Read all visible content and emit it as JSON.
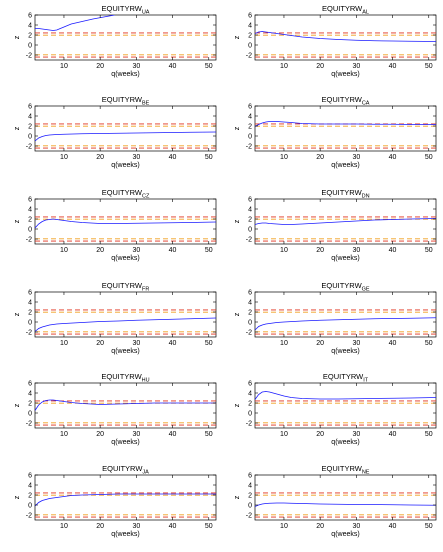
{
  "chart_data": [
    {
      "type": "line",
      "title": "EQUITYRW",
      "title_sub": "UA",
      "xlabel": "q(weeks)",
      "ylabel": "z",
      "xlim": [
        2,
        52
      ],
      "ylim": [
        -3,
        6
      ],
      "xticks": [
        10,
        20,
        30,
        40,
        50
      ],
      "yticks": [
        -2,
        0,
        2,
        4,
        6
      ],
      "critical_values": [
        {
          "value": 1.96,
          "color": "#f0a020"
        },
        {
          "value": 2.41,
          "color": "#e0301e"
        },
        {
          "value": -1.96,
          "color": "#f0a020"
        },
        {
          "value": -2.41,
          "color": "#e0301e"
        }
      ],
      "series": [
        {
          "color": "#1a1aff",
          "x": [
            2,
            3,
            4,
            5,
            6,
            7,
            8,
            10,
            12,
            15,
            18,
            21,
            24
          ],
          "y": [
            3.3,
            3.3,
            3.2,
            3.1,
            3.0,
            2.9,
            3.0,
            3.6,
            4.2,
            4.7,
            5.2,
            5.6,
            6.0
          ]
        }
      ]
    },
    {
      "type": "line",
      "title": "EQUITYRW",
      "title_sub": "AL",
      "xlabel": "q(weeks)",
      "ylabel": "z",
      "xlim": [
        2,
        52
      ],
      "ylim": [
        -3,
        6
      ],
      "xticks": [
        10,
        20,
        30,
        40,
        50
      ],
      "yticks": [
        -2,
        0,
        2,
        4,
        6
      ],
      "critical_values": [
        {
          "value": 1.96,
          "color": "#f0a020"
        },
        {
          "value": 2.41,
          "color": "#e0301e"
        },
        {
          "value": -1.96,
          "color": "#f0a020"
        },
        {
          "value": -2.41,
          "color": "#e0301e"
        }
      ],
      "series": [
        {
          "color": "#1a1aff",
          "x": [
            2,
            3,
            4,
            5,
            6,
            8,
            10,
            12,
            15,
            20,
            25,
            30,
            35,
            40,
            45,
            52
          ],
          "y": [
            2.3,
            2.6,
            2.7,
            2.6,
            2.5,
            2.3,
            2.1,
            1.9,
            1.6,
            1.3,
            1.1,
            0.95,
            0.85,
            0.8,
            0.75,
            0.7
          ]
        }
      ]
    },
    {
      "type": "line",
      "title": "EQUITYRW",
      "title_sub": "BE",
      "xlabel": "q(weeks)",
      "ylabel": "z",
      "xlim": [
        2,
        52
      ],
      "ylim": [
        -3,
        6
      ],
      "xticks": [
        10,
        20,
        30,
        40,
        50
      ],
      "yticks": [
        -2,
        0,
        2,
        4,
        6
      ],
      "critical_values": [
        {
          "value": 1.96,
          "color": "#f0a020"
        },
        {
          "value": 2.41,
          "color": "#e0301e"
        },
        {
          "value": -1.96,
          "color": "#f0a020"
        },
        {
          "value": -2.41,
          "color": "#e0301e"
        }
      ],
      "series": [
        {
          "color": "#1a1aff",
          "x": [
            2,
            3,
            4,
            5,
            6,
            8,
            10,
            15,
            20,
            25,
            30,
            35,
            40,
            45,
            52
          ],
          "y": [
            -1.0,
            -0.4,
            -0.1,
            0.1,
            0.2,
            0.3,
            0.35,
            0.45,
            0.5,
            0.55,
            0.6,
            0.65,
            0.7,
            0.75,
            0.8
          ]
        }
      ]
    },
    {
      "type": "line",
      "title": "EQUITYRW",
      "title_sub": "CA",
      "xlabel": "q(weeks)",
      "ylabel": "z",
      "xlim": [
        2,
        52
      ],
      "ylim": [
        -3,
        6
      ],
      "xticks": [
        10,
        20,
        30,
        40,
        50
      ],
      "yticks": [
        -2,
        0,
        2,
        4,
        6
      ],
      "critical_values": [
        {
          "value": 1.96,
          "color": "#f0a020"
        },
        {
          "value": 2.41,
          "color": "#e0301e"
        },
        {
          "value": -1.96,
          "color": "#f0a020"
        },
        {
          "value": -2.41,
          "color": "#e0301e"
        }
      ],
      "series": [
        {
          "color": "#1a1aff",
          "x": [
            2,
            3,
            4,
            5,
            6,
            8,
            10,
            12,
            15,
            20,
            25,
            30,
            35,
            40,
            45,
            52
          ],
          "y": [
            1.9,
            2.3,
            2.6,
            2.8,
            2.9,
            2.9,
            2.8,
            2.7,
            2.5,
            2.4,
            2.4,
            2.4,
            2.35,
            2.35,
            2.3,
            2.3
          ]
        }
      ]
    },
    {
      "type": "line",
      "title": "EQUITYRW",
      "title_sub": "CZ",
      "xlabel": "q(weeks)",
      "ylabel": "z",
      "xlim": [
        2,
        52
      ],
      "ylim": [
        -3,
        6
      ],
      "xticks": [
        10,
        20,
        30,
        40,
        50
      ],
      "yticks": [
        -2,
        0,
        2,
        4,
        6
      ],
      "critical_values": [
        {
          "value": 1.96,
          "color": "#f0a020"
        },
        {
          "value": 2.41,
          "color": "#e0301e"
        },
        {
          "value": -1.96,
          "color": "#f0a020"
        },
        {
          "value": -2.41,
          "color": "#e0301e"
        }
      ],
      "series": [
        {
          "color": "#1a1aff",
          "x": [
            2,
            3,
            4,
            5,
            6,
            7,
            8,
            10,
            12,
            15,
            20,
            25,
            30,
            35,
            40,
            45,
            52
          ],
          "y": [
            0.2,
            1.0,
            1.5,
            1.8,
            1.9,
            2.0,
            1.9,
            1.7,
            1.5,
            1.3,
            1.1,
            1.1,
            1.15,
            1.2,
            1.25,
            1.3,
            1.4
          ]
        }
      ]
    },
    {
      "type": "line",
      "title": "EQUITYRW",
      "title_sub": "DN",
      "xlabel": "q(weeks)",
      "ylabel": "z",
      "xlim": [
        2,
        52
      ],
      "ylim": [
        -3,
        6
      ],
      "xticks": [
        10,
        20,
        30,
        40,
        50
      ],
      "yticks": [
        -2,
        0,
        2,
        4,
        6
      ],
      "critical_values": [
        {
          "value": 1.96,
          "color": "#f0a020"
        },
        {
          "value": 2.41,
          "color": "#e0301e"
        },
        {
          "value": -1.96,
          "color": "#f0a020"
        },
        {
          "value": -2.41,
          "color": "#e0301e"
        }
      ],
      "series": [
        {
          "color": "#1a1aff",
          "x": [
            2,
            3,
            4,
            5,
            6,
            8,
            10,
            12,
            15,
            20,
            25,
            30,
            35,
            40,
            45,
            52
          ],
          "y": [
            0.9,
            1.1,
            1.2,
            1.2,
            1.1,
            1.0,
            0.9,
            0.9,
            1.0,
            1.2,
            1.4,
            1.6,
            1.8,
            1.9,
            2.0,
            2.1
          ]
        }
      ]
    },
    {
      "type": "line",
      "title": "EQUITYRW",
      "title_sub": "FR",
      "xlabel": "q(weeks)",
      "ylabel": "z",
      "xlim": [
        2,
        52
      ],
      "ylim": [
        -3,
        6
      ],
      "xticks": [
        10,
        20,
        30,
        40,
        50
      ],
      "yticks": [
        -2,
        0,
        2,
        4,
        6
      ],
      "critical_values": [
        {
          "value": 1.96,
          "color": "#f0a020"
        },
        {
          "value": 2.41,
          "color": "#e0301e"
        },
        {
          "value": -1.96,
          "color": "#f0a020"
        },
        {
          "value": -2.41,
          "color": "#e0301e"
        }
      ],
      "series": [
        {
          "color": "#1a1aff",
          "x": [
            2,
            3,
            4,
            5,
            6,
            8,
            10,
            15,
            20,
            25,
            30,
            35,
            40,
            45,
            52
          ],
          "y": [
            -1.9,
            -1.3,
            -1.0,
            -0.8,
            -0.6,
            -0.4,
            -0.3,
            -0.1,
            0.1,
            0.2,
            0.35,
            0.45,
            0.55,
            0.65,
            0.8
          ]
        }
      ]
    },
    {
      "type": "line",
      "title": "EQUITYRW",
      "title_sub": "GE",
      "xlabel": "q(weeks)",
      "ylabel": "z",
      "xlim": [
        2,
        52
      ],
      "ylim": [
        -3,
        6
      ],
      "xticks": [
        10,
        20,
        30,
        40,
        50
      ],
      "yticks": [
        -2,
        0,
        2,
        4,
        6
      ],
      "critical_values": [
        {
          "value": 1.96,
          "color": "#f0a020"
        },
        {
          "value": 2.41,
          "color": "#e0301e"
        },
        {
          "value": -1.96,
          "color": "#f0a020"
        },
        {
          "value": -2.41,
          "color": "#e0301e"
        }
      ],
      "series": [
        {
          "color": "#1a1aff",
          "x": [
            2,
            3,
            4,
            5,
            6,
            8,
            10,
            15,
            20,
            25,
            30,
            35,
            40,
            45,
            52
          ],
          "y": [
            -1.6,
            -0.9,
            -0.6,
            -0.4,
            -0.3,
            -0.1,
            0.0,
            0.2,
            0.35,
            0.45,
            0.55,
            0.65,
            0.7,
            0.75,
            0.85
          ]
        }
      ]
    },
    {
      "type": "line",
      "title": "EQUITYRW",
      "title_sub": "HU",
      "xlabel": "q(weeks)",
      "ylabel": "z",
      "xlim": [
        2,
        52
      ],
      "ylim": [
        -3,
        6
      ],
      "xticks": [
        10,
        20,
        30,
        40,
        50
      ],
      "yticks": [
        -2,
        0,
        2,
        4,
        6
      ],
      "critical_values": [
        {
          "value": 1.96,
          "color": "#f0a020"
        },
        {
          "value": 2.41,
          "color": "#e0301e"
        },
        {
          "value": -1.96,
          "color": "#f0a020"
        },
        {
          "value": -2.41,
          "color": "#e0301e"
        }
      ],
      "series": [
        {
          "color": "#1a1aff",
          "x": [
            2,
            3,
            4,
            5,
            6,
            7,
            8,
            10,
            12,
            15,
            20,
            25,
            30,
            35,
            40,
            45,
            52
          ],
          "y": [
            0.5,
            1.6,
            2.2,
            2.5,
            2.6,
            2.6,
            2.5,
            2.3,
            2.1,
            1.9,
            1.7,
            1.8,
            1.9,
            2.0,
            2.0,
            2.0,
            2.0
          ]
        }
      ]
    },
    {
      "type": "line",
      "title": "EQUITYRW",
      "title_sub": "IT",
      "xlabel": "q(weeks)",
      "ylabel": "z",
      "xlim": [
        2,
        52
      ],
      "ylim": [
        -3,
        6
      ],
      "xticks": [
        10,
        20,
        30,
        40,
        50
      ],
      "yticks": [
        -2,
        0,
        2,
        4,
        6
      ],
      "critical_values": [
        {
          "value": 1.96,
          "color": "#f0a020"
        },
        {
          "value": 2.41,
          "color": "#e0301e"
        },
        {
          "value": -1.96,
          "color": "#f0a020"
        },
        {
          "value": -2.41,
          "color": "#e0301e"
        }
      ],
      "series": [
        {
          "color": "#1a1aff",
          "x": [
            2,
            3,
            4,
            5,
            6,
            7,
            8,
            10,
            12,
            15,
            20,
            25,
            30,
            35,
            40,
            45,
            52
          ],
          "y": [
            2.7,
            3.7,
            4.2,
            4.3,
            4.2,
            4.0,
            3.8,
            3.4,
            3.1,
            2.9,
            2.8,
            2.8,
            2.85,
            2.9,
            2.95,
            3.0,
            3.1
          ]
        }
      ]
    },
    {
      "type": "line",
      "title": "EQUITYRW",
      "title_sub": "JA",
      "xlabel": "q(weeks)",
      "ylabel": "z",
      "xlim": [
        2,
        52
      ],
      "ylim": [
        -3,
        6
      ],
      "xticks": [
        10,
        20,
        30,
        40,
        50
      ],
      "yticks": [
        -2,
        0,
        2,
        4,
        6
      ],
      "critical_values": [
        {
          "value": 1.96,
          "color": "#f0a020"
        },
        {
          "value": 2.41,
          "color": "#e0301e"
        },
        {
          "value": -1.96,
          "color": "#f0a020"
        },
        {
          "value": -2.41,
          "color": "#e0301e"
        }
      ],
      "series": [
        {
          "color": "#1a1aff",
          "x": [
            2,
            3,
            4,
            5,
            6,
            8,
            10,
            12,
            15,
            20,
            25,
            30,
            35,
            40,
            45,
            52
          ],
          "y": [
            -0.2,
            0.5,
            0.9,
            1.1,
            1.3,
            1.5,
            1.7,
            1.9,
            2.0,
            2.1,
            2.2,
            2.2,
            2.2,
            2.2,
            2.2,
            2.2
          ]
        }
      ]
    },
    {
      "type": "line",
      "title": "EQUITYRW",
      "title_sub": "NE",
      "xlabel": "q(weeks)",
      "ylabel": "z",
      "xlim": [
        2,
        52
      ],
      "ylim": [
        -3,
        6
      ],
      "xticks": [
        10,
        20,
        30,
        40,
        50
      ],
      "yticks": [
        -2,
        0,
        2,
        4,
        6
      ],
      "critical_values": [
        {
          "value": 1.96,
          "color": "#f0a020"
        },
        {
          "value": 2.41,
          "color": "#e0301e"
        },
        {
          "value": -1.96,
          "color": "#f0a020"
        },
        {
          "value": -2.41,
          "color": "#e0301e"
        }
      ],
      "series": [
        {
          "color": "#1a1aff",
          "x": [
            2,
            3,
            4,
            5,
            6,
            8,
            10,
            12,
            15,
            20,
            25,
            30,
            35,
            40,
            45,
            52
          ],
          "y": [
            -0.3,
            0.0,
            0.2,
            0.3,
            0.35,
            0.4,
            0.4,
            0.35,
            0.3,
            0.2,
            0.15,
            0.1,
            0.1,
            0.05,
            0.0,
            -0.05
          ]
        }
      ]
    }
  ]
}
